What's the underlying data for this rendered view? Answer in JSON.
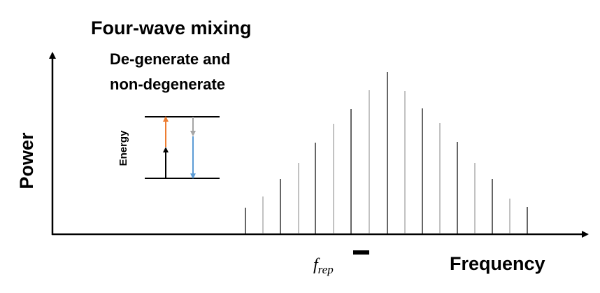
{
  "title": "Four-wave mixing",
  "subtitle_lines": [
    "De-generate and",
    "non-degenerate"
  ],
  "energy_label": "Energy",
  "y_axis_label": "Power",
  "x_axis_label": "Frequency",
  "spacing_label": {
    "symbol": "f",
    "subscript": "rep"
  }
}
